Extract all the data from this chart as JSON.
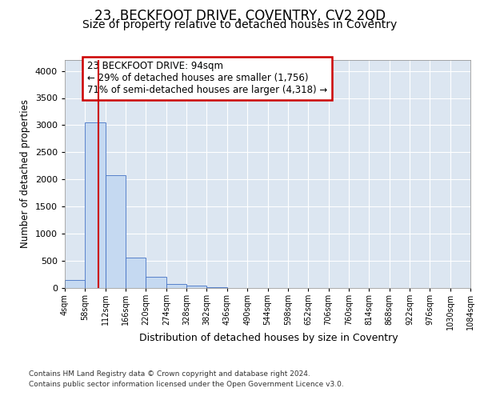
{
  "title1": "23, BECKFOOT DRIVE, COVENTRY, CV2 2QD",
  "title2": "Size of property relative to detached houses in Coventry",
  "xlabel": "Distribution of detached houses by size in Coventry",
  "ylabel": "Number of detached properties",
  "footnote1": "Contains HM Land Registry data © Crown copyright and database right 2024.",
  "footnote2": "Contains public sector information licensed under the Open Government Licence v3.0.",
  "bin_labels": [
    "4sqm",
    "58sqm",
    "112sqm",
    "166sqm",
    "220sqm",
    "274sqm",
    "328sqm",
    "382sqm",
    "436sqm",
    "490sqm",
    "544sqm",
    "598sqm",
    "652sqm",
    "706sqm",
    "760sqm",
    "814sqm",
    "868sqm",
    "922sqm",
    "976sqm",
    "1030sqm",
    "1084sqm"
  ],
  "bar_values": [
    145,
    3050,
    2080,
    555,
    210,
    75,
    40,
    20,
    5,
    0,
    0,
    0,
    0,
    0,
    0,
    0,
    0,
    0,
    0,
    0
  ],
  "bar_color": "#c5d9f1",
  "bar_edge_color": "#4472c4",
  "property_line_x": 1.64,
  "property_line_color": "#cc0000",
  "annotation_text": "23 BECKFOOT DRIVE: 94sqm\n← 29% of detached houses are smaller (1,756)\n71% of semi-detached houses are larger (4,318) →",
  "annotation_box_color": "#cc0000",
  "annotation_text_color": "#000000",
  "ylim": [
    0,
    4200
  ],
  "yticks": [
    0,
    500,
    1000,
    1500,
    2000,
    2500,
    3000,
    3500,
    4000
  ],
  "background_color": "#ffffff",
  "plot_bg_color": "#dce6f1",
  "grid_color": "#ffffff",
  "title1_fontsize": 12,
  "title2_fontsize": 10
}
